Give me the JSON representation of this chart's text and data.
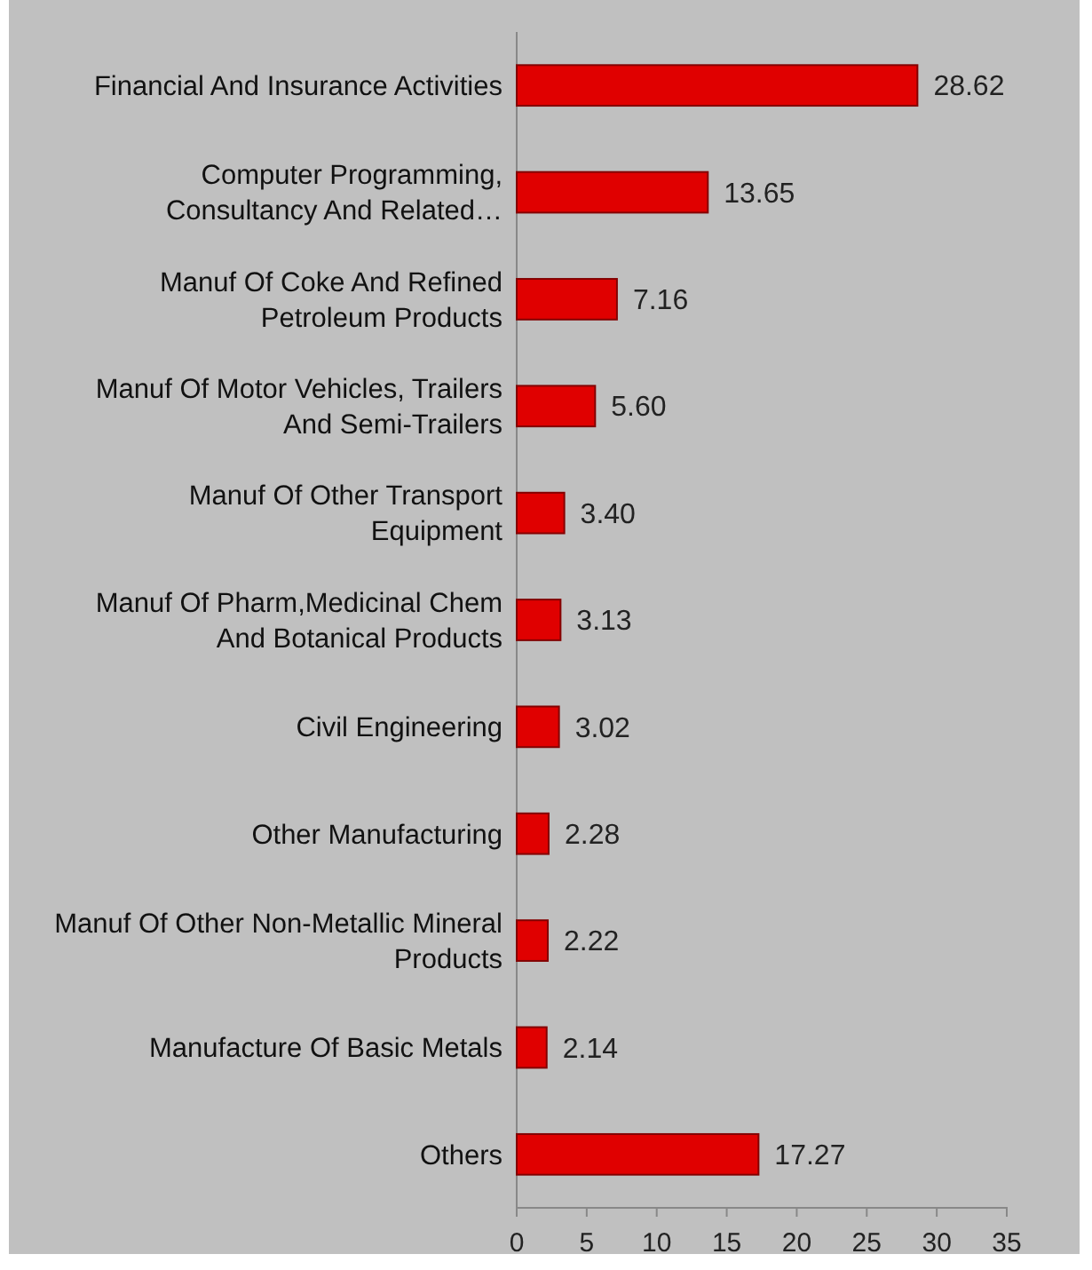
{
  "chart_data": {
    "type": "bar",
    "orientation": "horizontal",
    "categories": [
      "Financial And Insurance Activities",
      "Computer Programming, Consultancy And Related…",
      "Manuf Of Coke And Refined Petroleum Products",
      "Manuf Of Motor Vehicles, Trailers And Semi-Trailers",
      "Manuf Of Other Transport Equipment",
      "Manuf Of Pharm,Medicinal Chem And Botanical Products",
      "Civil Engineering",
      "Other Manufacturing",
      "Manuf Of Other Non-Metallic Mineral Products",
      "Manufacture Of Basic Metals",
      "Others"
    ],
    "values": [
      28.62,
      13.65,
      7.16,
      5.6,
      3.4,
      3.13,
      3.02,
      2.28,
      2.22,
      2.14,
      17.27
    ],
    "value_labels": [
      "28.62",
      "13.65",
      "7.16",
      "5.60",
      "3.40",
      "3.13",
      "3.02",
      "2.28",
      "2.22",
      "2.14",
      "17.27"
    ],
    "color": "#e00000",
    "xlim": [
      0,
      35
    ],
    "xticks": [
      0,
      5,
      10,
      15,
      20,
      25,
      30,
      35
    ],
    "grid": false
  }
}
